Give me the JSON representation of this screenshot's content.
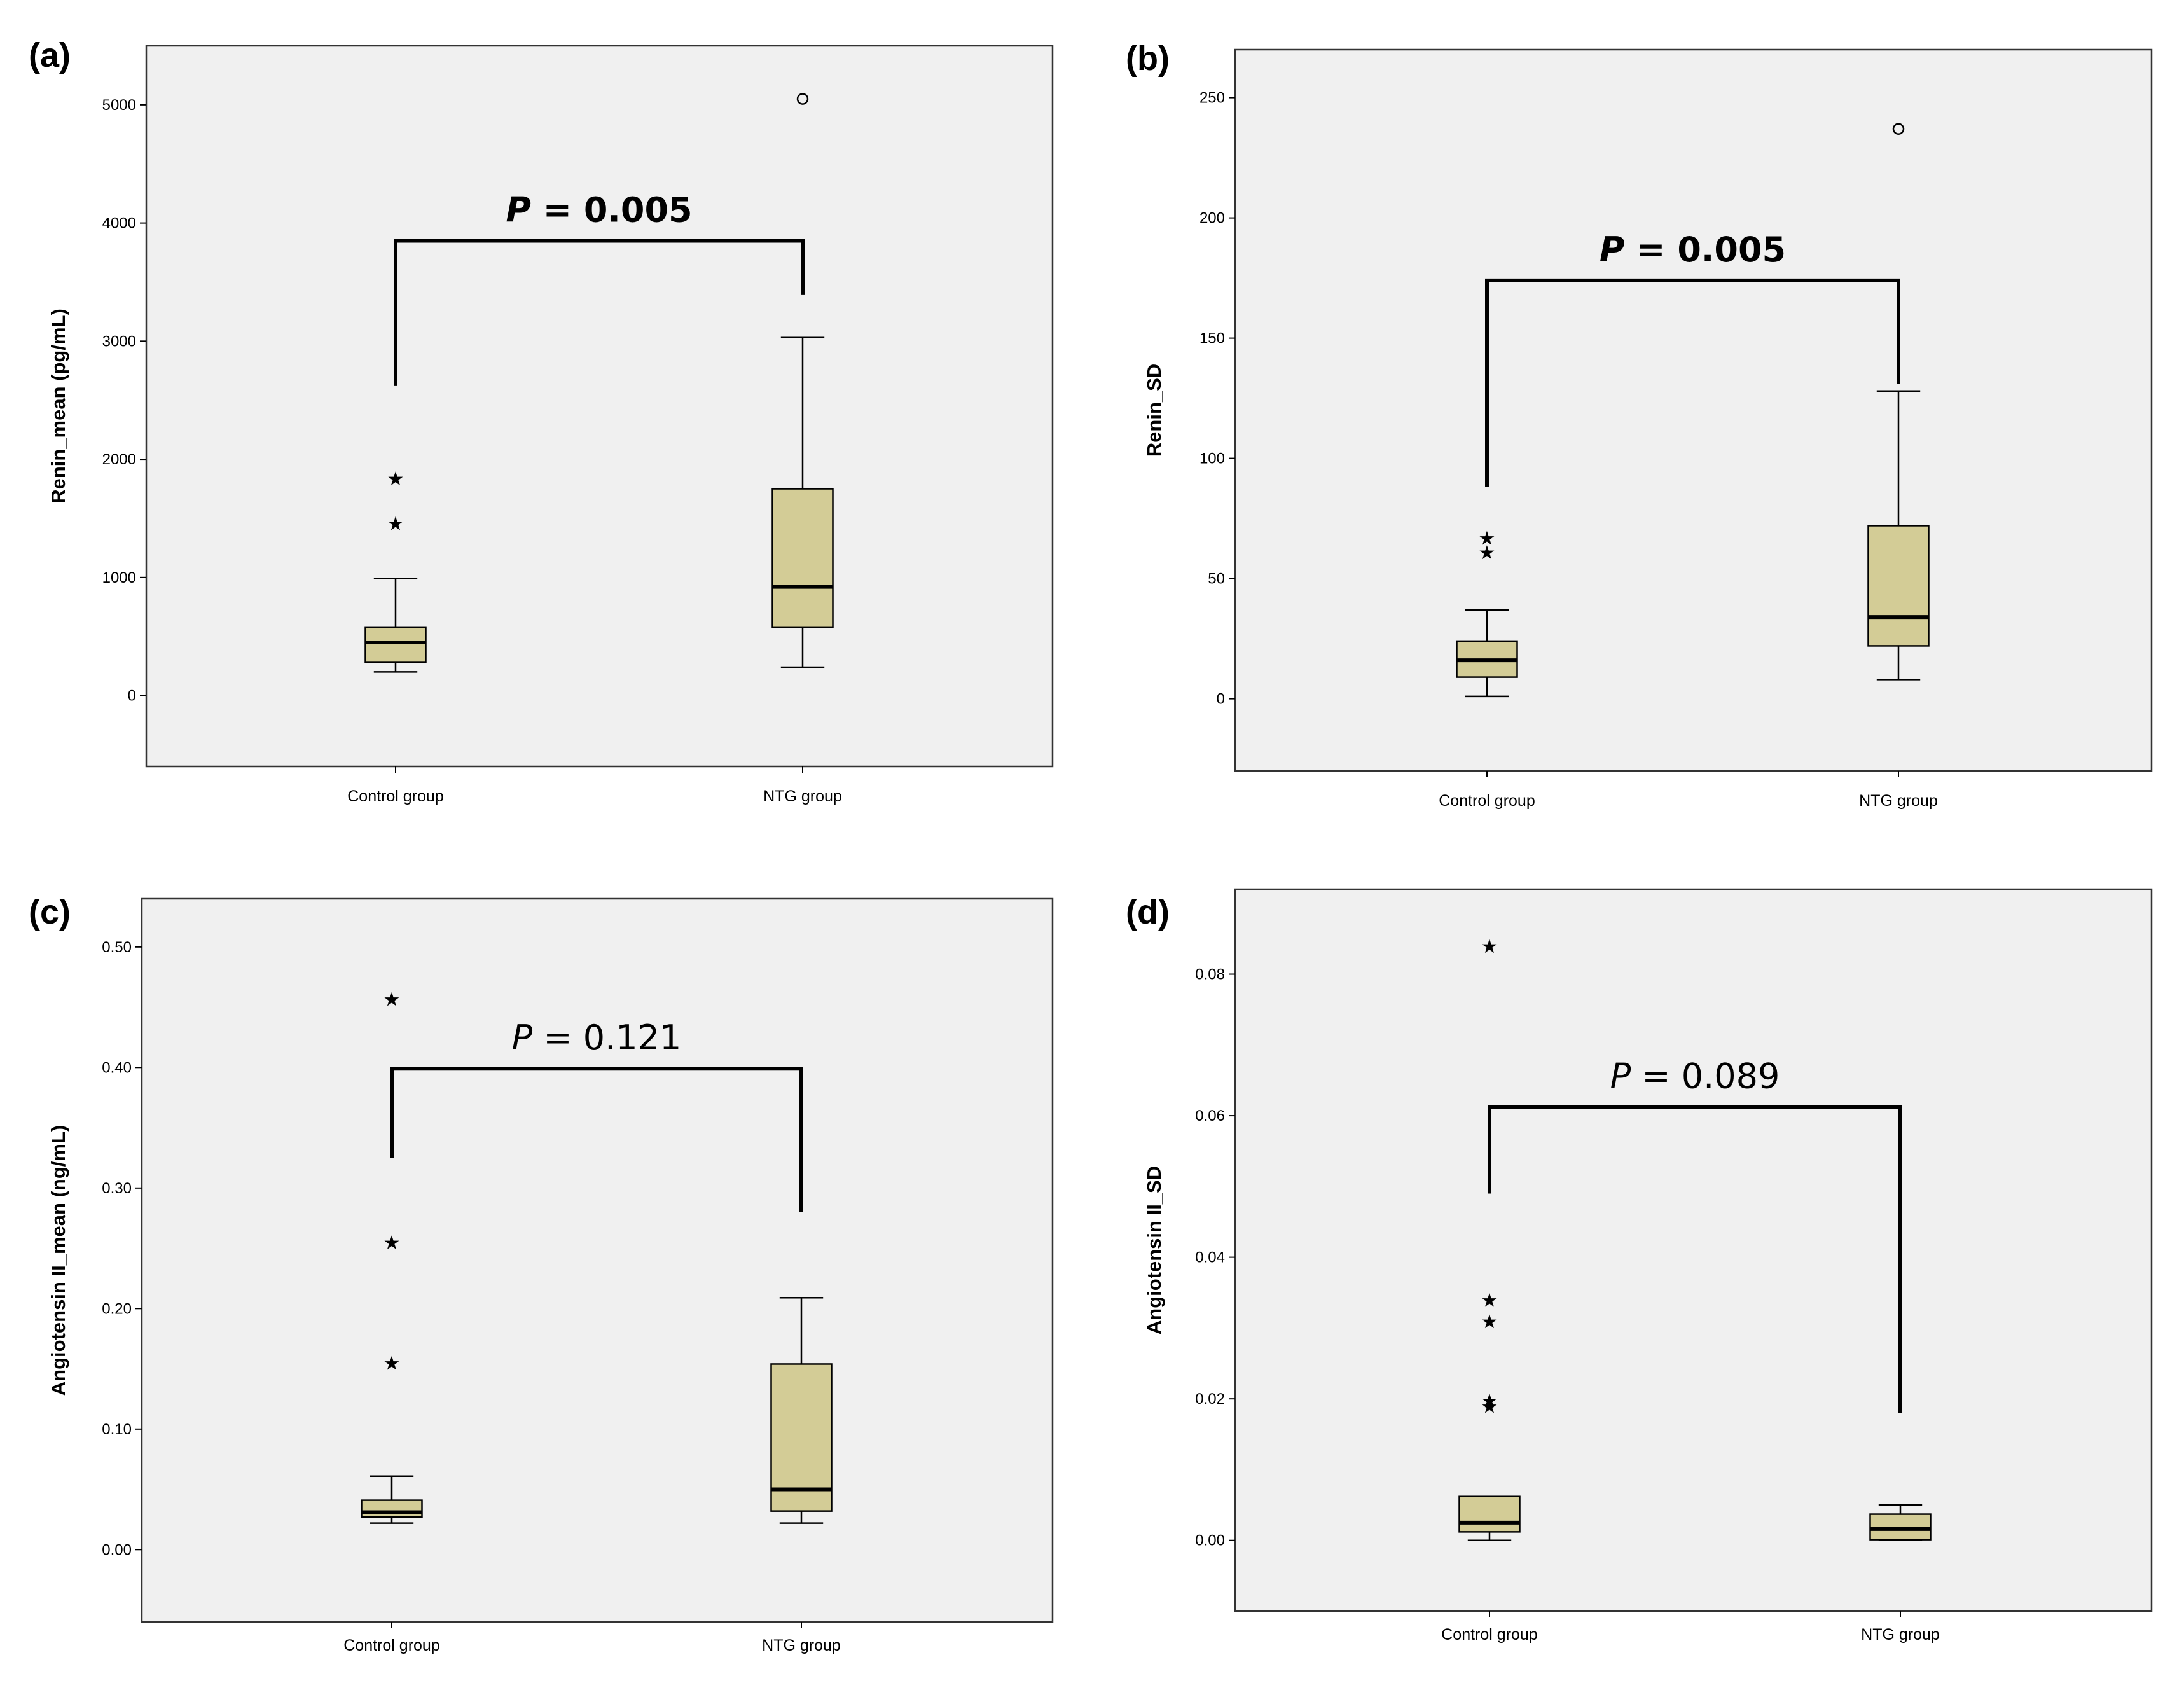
{
  "chart_data": [
    {
      "panel": "(a)",
      "type": "box",
      "ylabel": "Renin_mean (pg/mL)",
      "ylim": [
        -600,
        5500
      ],
      "yticks": [
        0,
        1000,
        2000,
        3000,
        4000,
        5000
      ],
      "ytick_labels": [
        "0",
        "1000",
        "2000",
        "3000",
        "4000",
        "5000"
      ],
      "categories": [
        "Control group",
        "NTG group"
      ],
      "boxes": [
        {
          "whisker_low": 200,
          "q1": 280,
          "median": 450,
          "q3": 580,
          "whisker_high": 990,
          "outliers": [],
          "extremes": [
            1460,
            1840
          ]
        },
        {
          "whisker_low": 240,
          "q1": 580,
          "median": 920,
          "q3": 1750,
          "whisker_high": 3030,
          "outliers": [
            5050
          ],
          "extremes": []
        }
      ],
      "p_label": "P",
      "p_eq": " = ",
      "p_value": "0.005",
      "p_bold": true,
      "bracket": {
        "y": 3850,
        "left_end": 2620,
        "right_end": 3390
      }
    },
    {
      "panel": "(b)",
      "type": "box",
      "ylabel": "Renin_SD",
      "ylim": [
        -30,
        270
      ],
      "yticks": [
        0,
        50,
        100,
        150,
        200,
        250
      ],
      "ytick_labels": [
        "0",
        "50",
        "100",
        "150",
        "200",
        "250"
      ],
      "categories": [
        "Control group",
        "NTG group"
      ],
      "boxes": [
        {
          "whisker_low": 1,
          "q1": 9,
          "median": 16,
          "q3": 24,
          "whisker_high": 37,
          "outliers": [],
          "extremes": [
            61,
            67
          ]
        },
        {
          "whisker_low": 8,
          "q1": 22,
          "median": 34,
          "q3": 72,
          "whisker_high": 128,
          "outliers": [
            237
          ],
          "extremes": []
        }
      ],
      "p_label": "P",
      "p_eq": " = ",
      "p_value": "0.005",
      "p_bold": true,
      "bracket": {
        "y": 174,
        "left_end": 88,
        "right_end": 131
      }
    },
    {
      "panel": "(c)",
      "type": "box",
      "ylabel": "Angiotensin II_mean (ng/mL)",
      "ylim": [
        -0.06,
        0.54
      ],
      "yticks": [
        0.0,
        0.1,
        0.2,
        0.3,
        0.4,
        0.5
      ],
      "ytick_labels": [
        "0.00",
        "0.10",
        "0.20",
        "0.30",
        "0.40",
        "0.50"
      ],
      "categories": [
        "Control group",
        "NTG group"
      ],
      "boxes": [
        {
          "whisker_low": 0.022,
          "q1": 0.027,
          "median": 0.031,
          "q3": 0.041,
          "whisker_high": 0.061,
          "outliers": [],
          "extremes": [
            0.155,
            0.255,
            0.457
          ]
        },
        {
          "whisker_low": 0.022,
          "q1": 0.032,
          "median": 0.05,
          "q3": 0.154,
          "whisker_high": 0.209,
          "outliers": [],
          "extremes": []
        }
      ],
      "p_label": "P",
      "p_eq": " = ",
      "p_value": "0.121",
      "p_bold": false,
      "bracket": {
        "y": 0.399,
        "left_end": 0.325,
        "right_end": 0.28
      }
    },
    {
      "panel": "(d)",
      "type": "box",
      "ylabel": "Angiotensin II_SD",
      "ylim": [
        -0.01,
        0.092
      ],
      "yticks": [
        0.0,
        0.02,
        0.04,
        0.06,
        0.08
      ],
      "ytick_labels": [
        "0.00",
        "0.02",
        "0.04",
        "0.06",
        "0.08"
      ],
      "categories": [
        "Control group",
        "NTG group"
      ],
      "boxes": [
        {
          "whisker_low": 0.0,
          "q1": 0.0012,
          "median": 0.0025,
          "q3": 0.0062,
          "whisker_high": 0.0062,
          "outliers": [],
          "extremes": [
            0.019,
            0.0198,
            0.031,
            0.034,
            0.084
          ]
        },
        {
          "whisker_low": 0.0,
          "q1": 0.0001,
          "median": 0.0016,
          "q3": 0.0037,
          "whisker_high": 0.005,
          "outliers": [],
          "extremes": []
        }
      ],
      "p_label": "P",
      "p_eq": " = ",
      "p_value": "0.089",
      "p_bold": false,
      "bracket": {
        "y": 0.0612,
        "left_end": 0.049,
        "right_end": 0.018
      }
    }
  ],
  "colors": {
    "box_fill": "#d3cc96",
    "plot_background": "#f0f0f0"
  }
}
